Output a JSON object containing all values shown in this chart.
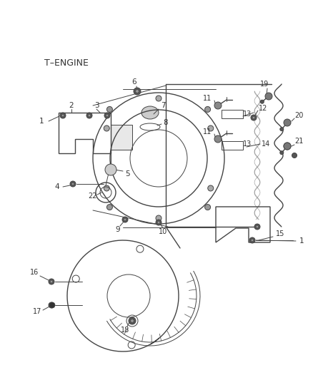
{
  "background_color": "#ffffff",
  "label_color": "#333333",
  "line_color": "#444444",
  "t_engine_label": "T–ENGINE",
  "figsize": [
    4.38,
    5.33
  ],
  "dpi": 100
}
